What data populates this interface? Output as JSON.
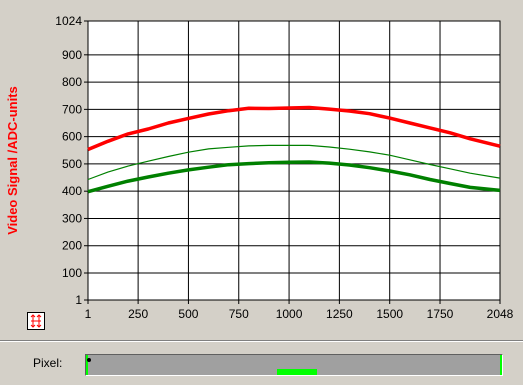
{
  "chart_data": {
    "type": "line",
    "ylabel": "Video Signal /ADC-units",
    "xlabel": "",
    "title": "",
    "xlim": [
      1,
      2048
    ],
    "ylim": [
      1,
      1024
    ],
    "x_ticks": [
      1,
      250,
      500,
      750,
      1000,
      1250,
      1500,
      1750,
      2048
    ],
    "y_ticks": [
      1,
      100,
      200,
      300,
      400,
      500,
      600,
      700,
      800,
      900,
      1024
    ],
    "grid": true,
    "x": [
      1,
      100,
      200,
      300,
      400,
      500,
      600,
      700,
      800,
      900,
      1000,
      1100,
      1200,
      1300,
      1400,
      1500,
      1600,
      1700,
      1800,
      1900,
      2048
    ],
    "series": [
      {
        "color": "#ff0000",
        "stroke": "thick",
        "values": [
          553,
          583,
          610,
          628,
          650,
          667,
          683,
          695,
          704,
          703,
          705,
          707,
          701,
          694,
          684,
          668,
          650,
          632,
          614,
          592,
          565
        ]
      },
      {
        "color": "#008000",
        "stroke": "thin",
        "values": [
          443,
          470,
          492,
          510,
          527,
          543,
          555,
          561,
          566,
          568,
          568,
          568,
          562,
          554,
          544,
          532,
          515,
          498,
          482,
          466,
          448
        ]
      },
      {
        "color": "#008000",
        "stroke": "thick",
        "values": [
          398,
          418,
          437,
          452,
          466,
          478,
          488,
          497,
          501,
          504,
          506,
          507,
          503,
          496,
          486,
          474,
          460,
          443,
          428,
          414,
          403
        ]
      }
    ]
  },
  "pixel_bar": {
    "label": "Pixel:",
    "range_start_fraction": 0.46,
    "range_end_fraction": 0.555
  },
  "colors": {
    "background": "#d4d0c8",
    "plot_bg": "#ffffff",
    "grid": "#000000"
  },
  "icons": {
    "scale_button": "autoscale-icon"
  }
}
